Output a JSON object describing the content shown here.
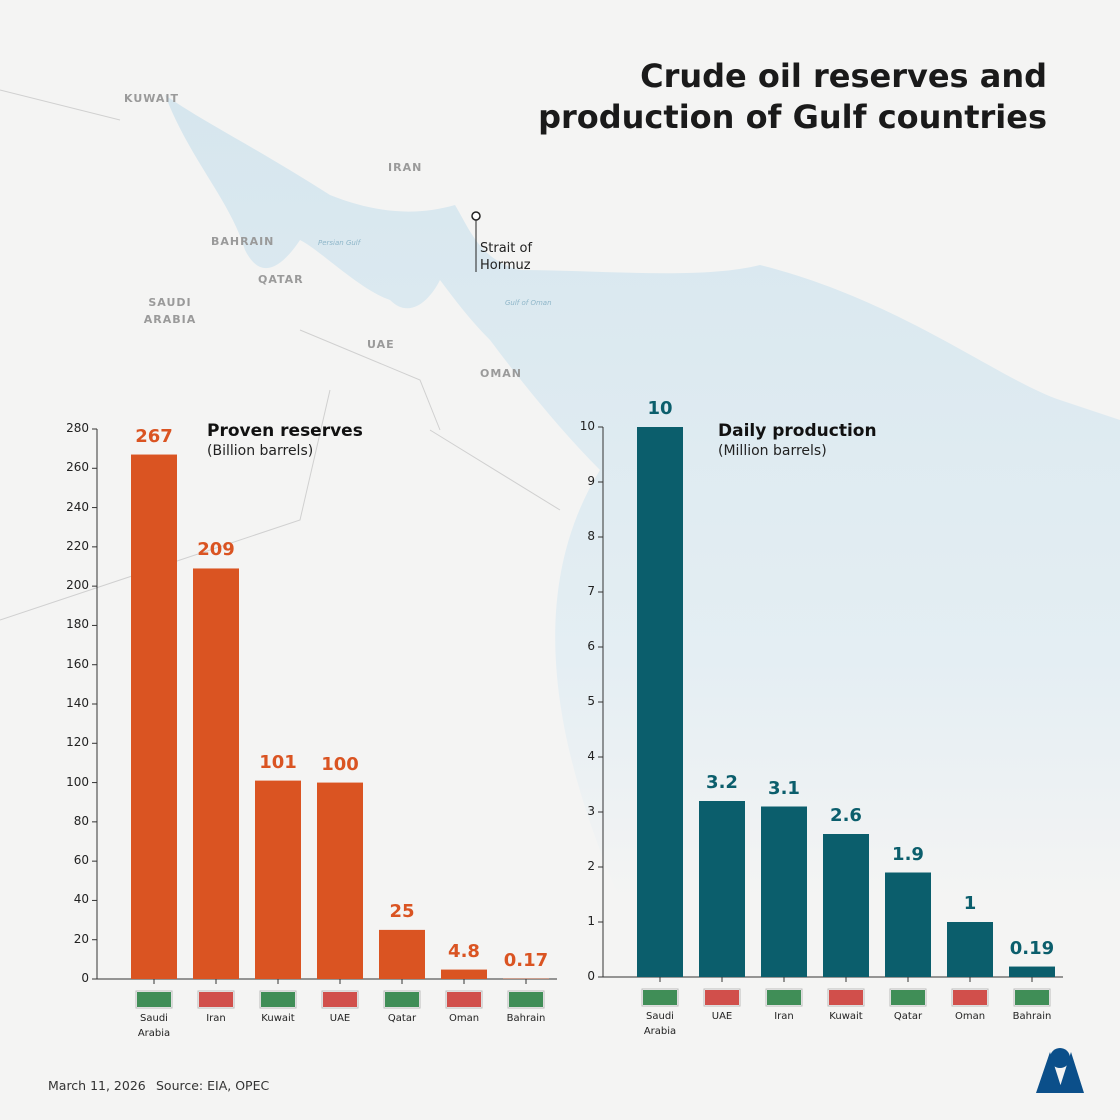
{
  "title": "Crude oil reserves and production of Gulf countries",
  "map_labels": [
    "KUWAIT",
    "IRAN",
    "BAHRAIN",
    "QATAR",
    "SAUDI ARABIA",
    "UAE",
    "OMAN",
    "Persian Gulf",
    "Gulf of Oman",
    "Strait of Hormuz"
  ],
  "footer": {
    "date": "March 11, 2026",
    "source": "Source: EIA, OPEC"
  },
  "chart_data": [
    {
      "type": "bar",
      "title": "Proven reserves",
      "subtitle": "(Billion barrels)",
      "categories": [
        "Saudi Arabia",
        "Iran",
        "Kuwait",
        "UAE",
        "Qatar",
        "Oman",
        "Bahrain"
      ],
      "values": [
        267,
        209,
        101,
        100,
        25,
        4.8,
        0.17
      ],
      "color": "#da5422",
      "ylim": [
        0,
        280
      ],
      "yticks": [
        0,
        20,
        40,
        60,
        80,
        100,
        120,
        140,
        160,
        180,
        200,
        220,
        240,
        260,
        280
      ]
    },
    {
      "type": "bar",
      "title": "Daily production",
      "subtitle": "(Million barrels)",
      "categories": [
        "Saudi Arabia",
        "UAE",
        "Iran",
        "Kuwait",
        "Qatar",
        "Oman",
        "Bahrain"
      ],
      "values": [
        10,
        3.2,
        3.1,
        2.6,
        1.9,
        1,
        0.19
      ],
      "color": "#0b5e6c",
      "ylim": [
        0,
        10
      ],
      "yticks": [
        0,
        1,
        2,
        3,
        4,
        5,
        6,
        7,
        8,
        9,
        10
      ]
    }
  ]
}
